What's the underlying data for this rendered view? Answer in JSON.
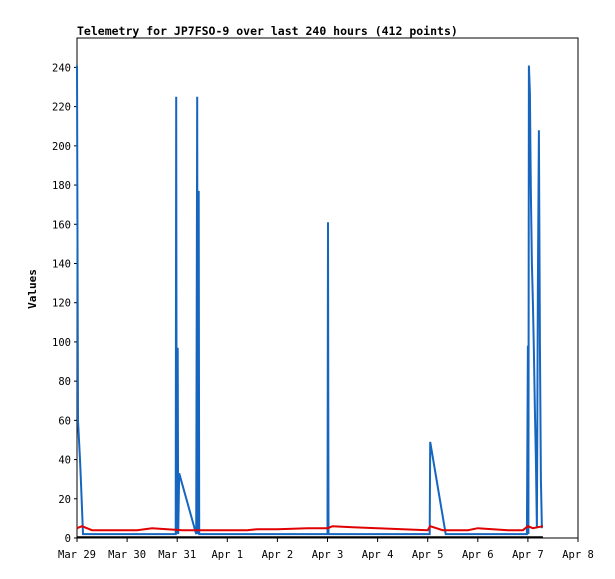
{
  "chart_data": {
    "type": "line",
    "title": "Telemetry for JP7FSO-9 over last 240 hours (412 points)",
    "xlabel": "",
    "ylabel": "Values",
    "x_tick_labels": [
      "Mar 29",
      "Mar 30",
      "Mar 31",
      "Apr 1",
      "Apr 2",
      "Apr 3",
      "Apr 4",
      "Apr 5",
      "Apr 6",
      "Apr 7",
      "Apr 8"
    ],
    "y_ticks": [
      0,
      20,
      40,
      60,
      80,
      100,
      120,
      140,
      160,
      180,
      200,
      220,
      240
    ],
    "xlim_days": [
      0,
      10
    ],
    "ylim": [
      0,
      255
    ],
    "grid": false,
    "legend": "none",
    "series": [
      {
        "color": "#1666c0",
        "points": [
          [
            0.0,
            241
          ],
          [
            0.02,
            60
          ],
          [
            0.04,
            50
          ],
          [
            0.06,
            40
          ],
          [
            0.08,
            28
          ],
          [
            0.1,
            15
          ],
          [
            0.12,
            2
          ],
          [
            1.97,
            2
          ],
          [
            1.98,
            225
          ],
          [
            1.99,
            2
          ],
          [
            2.01,
            97
          ],
          [
            2.02,
            2
          ],
          [
            2.04,
            33
          ],
          [
            2.38,
            2
          ],
          [
            2.4,
            225
          ],
          [
            2.41,
            2
          ],
          [
            2.43,
            177
          ],
          [
            2.44,
            2
          ],
          [
            5.0,
            2
          ],
          [
            5.01,
            161
          ],
          [
            5.02,
            2
          ],
          [
            7.04,
            2
          ],
          [
            7.05,
            49
          ],
          [
            7.36,
            2
          ],
          [
            8.98,
            2
          ],
          [
            9.0,
            98
          ],
          [
            9.01,
            2
          ],
          [
            9.02,
            241
          ],
          [
            9.04,
            227
          ],
          [
            9.05,
            200
          ],
          [
            9.06,
            175
          ],
          [
            9.08,
            140
          ],
          [
            9.1,
            120
          ],
          [
            9.12,
            95
          ],
          [
            9.14,
            65
          ],
          [
            9.16,
            40
          ],
          [
            9.18,
            5
          ],
          [
            9.2,
            130
          ],
          [
            9.22,
            208
          ],
          [
            9.24,
            100
          ],
          [
            9.26,
            30
          ],
          [
            9.28,
            5
          ]
        ]
      },
      {
        "color": "#e00000",
        "points": [
          [
            0.0,
            5
          ],
          [
            0.1,
            6
          ],
          [
            0.3,
            4
          ],
          [
            1.2,
            4
          ],
          [
            1.5,
            5
          ],
          [
            1.8,
            4.5
          ],
          [
            2.1,
            4
          ],
          [
            2.5,
            4
          ],
          [
            3.0,
            4
          ],
          [
            3.4,
            4
          ],
          [
            3.6,
            4.5
          ],
          [
            4.0,
            4.5
          ],
          [
            4.6,
            5
          ],
          [
            5.0,
            5
          ],
          [
            5.1,
            6
          ],
          [
            5.5,
            5.5
          ],
          [
            6.0,
            5
          ],
          [
            6.5,
            4.5
          ],
          [
            7.0,
            4
          ],
          [
            7.05,
            6
          ],
          [
            7.3,
            4
          ],
          [
            7.8,
            4
          ],
          [
            8.0,
            5
          ],
          [
            8.3,
            4.5
          ],
          [
            8.6,
            4
          ],
          [
            8.9,
            4
          ],
          [
            9.0,
            6
          ],
          [
            9.1,
            5
          ],
          [
            9.3,
            6
          ]
        ]
      },
      {
        "color": "#000000",
        "points": [
          [
            0.0,
            0.4
          ],
          [
            9.3,
            0.4
          ]
        ]
      }
    ]
  }
}
